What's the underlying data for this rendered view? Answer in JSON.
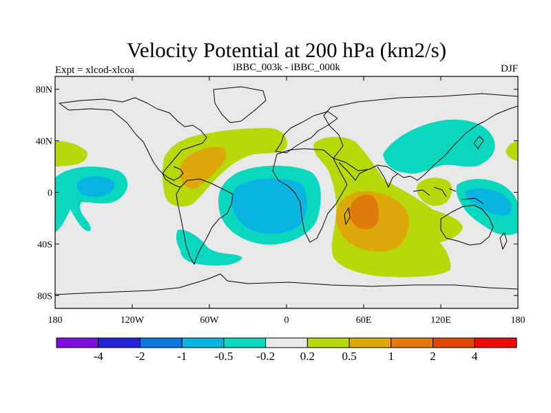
{
  "chart_data": {
    "type": "filled-contour-map",
    "title": "Velocity Potential at 200 hPa (km2/s)",
    "subtitle": "iBBC_003k - iBBC_000k",
    "left_label": "Expt = xlcod-xlcoa",
    "right_label": "DJF",
    "lon_range": [
      -180,
      180
    ],
    "lat_range": [
      -90,
      90
    ],
    "x_ticks": [
      {
        "value": -180,
        "label": "180"
      },
      {
        "value": -120,
        "label": "120W"
      },
      {
        "value": -60,
        "label": "60W"
      },
      {
        "value": 0,
        "label": "0"
      },
      {
        "value": 60,
        "label": "60E"
      },
      {
        "value": 120,
        "label": "120E"
      },
      {
        "value": 180,
        "label": "180"
      }
    ],
    "y_ticks": [
      {
        "value": 80,
        "label": "80N"
      },
      {
        "value": 40,
        "label": "40N"
      },
      {
        "value": 0,
        "label": "0"
      },
      {
        "value": -40,
        "label": "40S"
      },
      {
        "value": -80,
        "label": "80S"
      }
    ],
    "levels": [
      "-4",
      "-2",
      "-1",
      "-0.5",
      "-0.2",
      "0.2",
      "0.5",
      "1",
      "2",
      "4"
    ],
    "colors": [
      "#7b0fe0",
      "#2323d8",
      "#0a78dc",
      "#0ab4e0",
      "#0ad8be",
      "#e8e8e8",
      "#b8d80a",
      "#dca80a",
      "#e07a0a",
      "#e0460a",
      "#ee0a0a"
    ],
    "regions": [
      {
        "name": "central-pacific-negative",
        "level": "-0.5 to -0.2",
        "lon": -150,
        "lat": 5
      },
      {
        "name": "central-pacific-core",
        "level": "-1 to -0.5",
        "lon": -155,
        "lat": 5
      },
      {
        "name": "south-america-atlantic-negative",
        "level": "-0.5 to -0.2",
        "lon": -35,
        "lat": -15
      },
      {
        "name": "south-america-atlantic-core",
        "level": "-1 to -0.5",
        "lon": -30,
        "lat": -18
      },
      {
        "name": "patagonia-negative",
        "level": "-0.5 to -0.2",
        "lon": -60,
        "lat": -45
      },
      {
        "name": "asia-negative",
        "level": "-0.5 to -0.2",
        "lon": 120,
        "lat": 45
      },
      {
        "name": "western-pacific-negative",
        "level": "-0.5 to -0.2",
        "lon": 155,
        "lat": -10
      },
      {
        "name": "western-pacific-core",
        "level": "-1 to -0.5",
        "lon": 150,
        "lat": -15
      },
      {
        "name": "north-atlantic-positive",
        "level": "0.2 to 0.5",
        "lon": -45,
        "lat": 35
      },
      {
        "name": "caribbean-max",
        "level": "0.5 to 1",
        "lon": -70,
        "lat": 22
      },
      {
        "name": "north-pacific-positive",
        "level": "0.2 to 0.5",
        "lon": -165,
        "lat": 40
      },
      {
        "name": "dateline-north-positive",
        "level": "0.2 to 0.5",
        "lon": 178,
        "lat": 40
      },
      {
        "name": "africa-indian-ocean-positive",
        "level": "0.2 to 0.5",
        "lon": 55,
        "lat": -20
      },
      {
        "name": "indian-ocean-max",
        "level": "0.5 to 1",
        "lon": 60,
        "lat": -25
      },
      {
        "name": "madagascar-max",
        "level": "1 to 2",
        "lon": 57,
        "lat": -18
      },
      {
        "name": "maritime-continent-positive",
        "level": "0.2 to 0.5",
        "lon": 115,
        "lat": -5
      }
    ]
  }
}
